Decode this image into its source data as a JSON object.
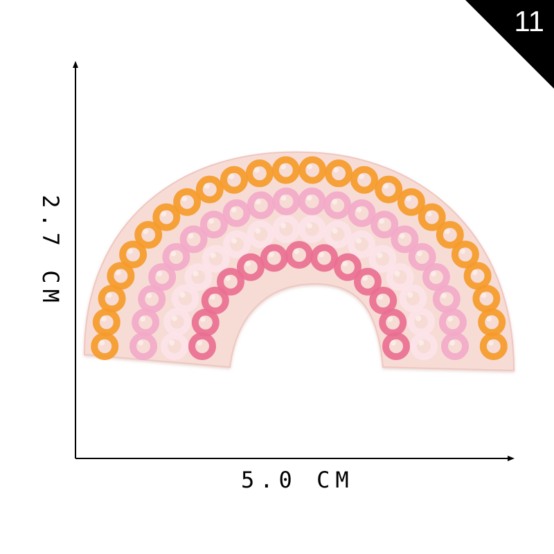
{
  "badge": {
    "number": "11"
  },
  "dimensions": {
    "width_label": "5.0 CM",
    "height_label": "2.7 CM"
  },
  "patch": {
    "subject": "sequin rainbow patch",
    "felt_color": "#f7dcd6",
    "ring_colors": [
      "#f59a2a",
      "#f2a9c8",
      "#fbe4ea",
      "#e96f91"
    ]
  }
}
